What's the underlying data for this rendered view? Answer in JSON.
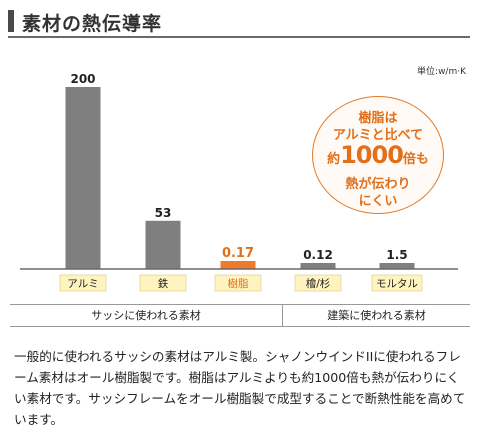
{
  "header": {
    "title": "素材の熱伝導率"
  },
  "chart_data": {
    "type": "bar",
    "title": "",
    "unit_label": "単位:w/m·K",
    "categories": [
      "アルミ",
      "鉄",
      "樹脂",
      "檜/杉",
      "モルタル"
    ],
    "values": [
      200,
      53,
      0.17,
      0.12,
      1.5
    ],
    "value_labels": [
      "200",
      "53",
      "0.17",
      "0.12",
      "1.5"
    ],
    "colors": {
      "bar": "#7f7f7f",
      "highlight_bar": "#ee7b2c",
      "label_bg": "#fff4bf",
      "highlight_text": "#e0701c",
      "axis": "#6a6a6a"
    },
    "highlight_index": 2,
    "ylim": [
      0,
      200
    ],
    "grid": false
  },
  "callout": {
    "line1": "樹脂は",
    "line2": "アルミと比べて",
    "line3_prefix": "約",
    "line3_number": "1000",
    "line3_suffix": "倍も",
    "line4": "熱が伝わり",
    "line5": "にくい"
  },
  "groups": {
    "left_label": "サッシに使われる素材",
    "right_label": "建築に使われる素材"
  },
  "description": "一般的に使われるサッシの素材はアルミ製。シャノンウインドIIに使われるフレーム素材はオール樹脂製です。樹脂はアルミよりも約1000倍も熱が伝わりにくい素材です。サッシフレームをオール樹脂製で成型することで断熱性能を高めています。"
}
